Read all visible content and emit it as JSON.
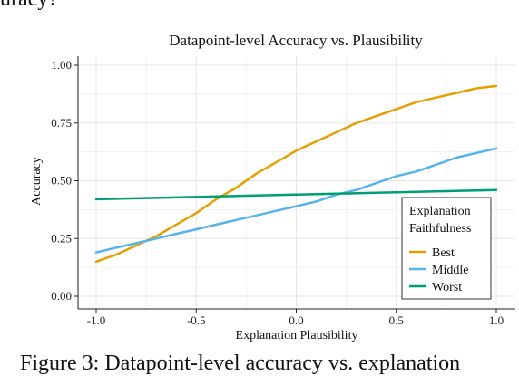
{
  "page": {
    "top_fragment": "uracy?",
    "bottom_fragment": "Figure 3:  Datapoint-level accuracy vs. explanation"
  },
  "chart_data": {
    "type": "line",
    "title": "Datapoint-level Accuracy vs. Plausibility",
    "xlabel": "Explanation Plausibility",
    "ylabel": "Accuracy",
    "xlim": [
      -1.0,
      1.0
    ],
    "ylim": [
      0.0,
      1.0
    ],
    "x_ticks": [
      "-1.0",
      "-0.5",
      "0.0",
      "0.5",
      "1.0"
    ],
    "y_ticks": [
      "0.00",
      "0.25",
      "0.50",
      "0.75",
      "1.00"
    ],
    "grid": true,
    "legend": {
      "title_lines": [
        "Explanation",
        "Faithfulness"
      ],
      "placement": "bottom-right"
    },
    "x": [
      -1.0,
      -0.9,
      -0.8,
      -0.7,
      -0.6,
      -0.5,
      -0.4,
      -0.3,
      -0.2,
      -0.1,
      0.0,
      0.1,
      0.2,
      0.3,
      0.4,
      0.5,
      0.6,
      0.7,
      0.8,
      0.9,
      1.0
    ],
    "series": [
      {
        "name": "Best",
        "color": "#E69F00",
        "values": [
          0.15,
          0.18,
          0.22,
          0.26,
          0.31,
          0.36,
          0.42,
          0.47,
          0.53,
          0.58,
          0.63,
          0.67,
          0.71,
          0.75,
          0.78,
          0.81,
          0.84,
          0.86,
          0.88,
          0.9,
          0.91
        ]
      },
      {
        "name": "Middle",
        "color": "#56B4E9",
        "values": [
          0.19,
          0.21,
          0.23,
          0.25,
          0.27,
          0.29,
          0.31,
          0.33,
          0.35,
          0.37,
          0.39,
          0.41,
          0.44,
          0.46,
          0.49,
          0.52,
          0.54,
          0.57,
          0.6,
          0.62,
          0.64
        ]
      },
      {
        "name": "Worst",
        "color": "#009E73",
        "values": [
          0.42,
          0.422,
          0.424,
          0.426,
          0.428,
          0.43,
          0.432,
          0.434,
          0.436,
          0.438,
          0.44,
          0.442,
          0.444,
          0.446,
          0.448,
          0.45,
          0.452,
          0.454,
          0.456,
          0.458,
          0.46
        ]
      }
    ]
  }
}
